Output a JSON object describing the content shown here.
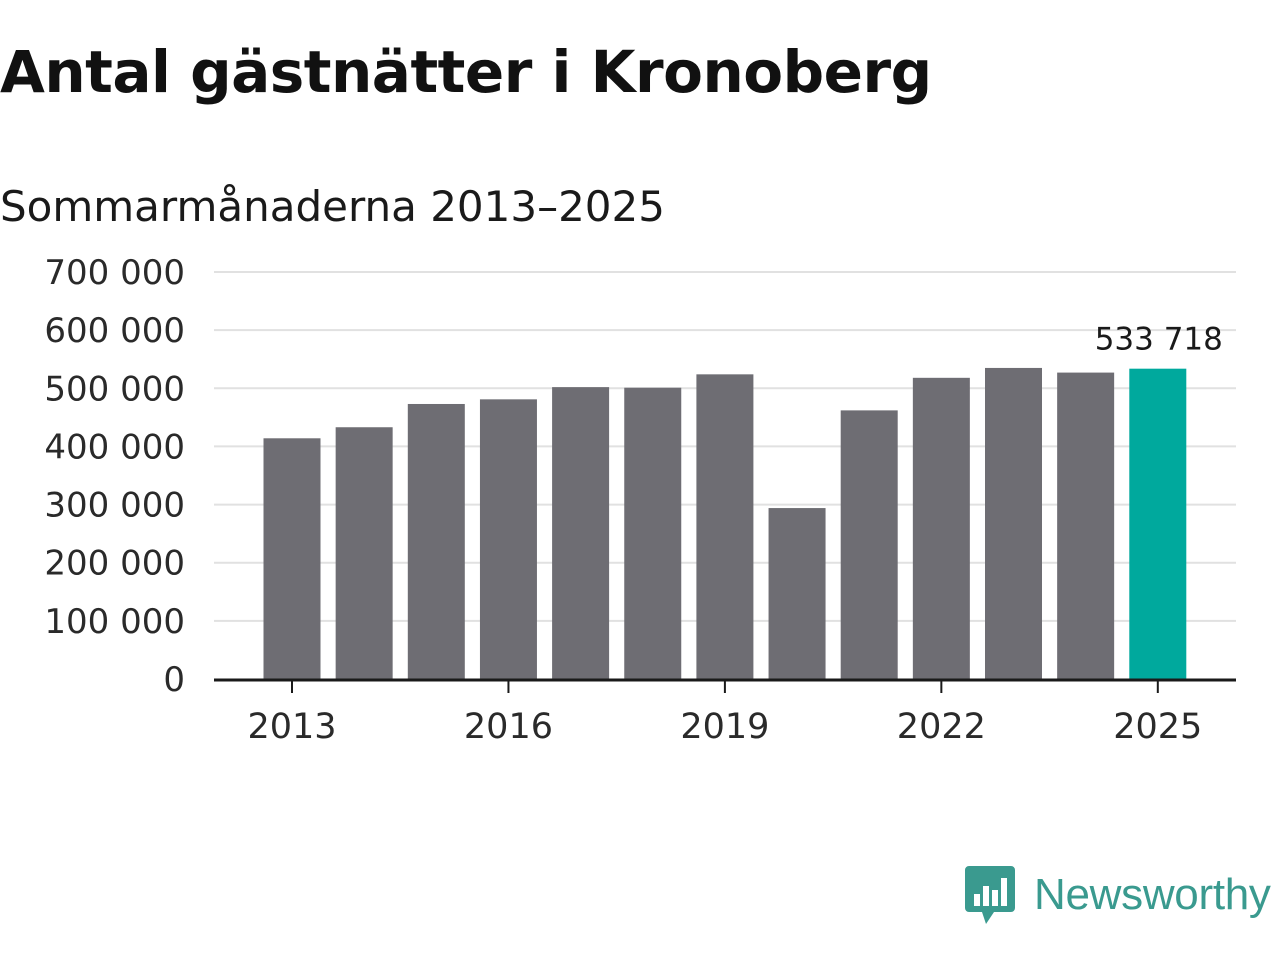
{
  "title": "Antal gästnätter i Kronoberg",
  "subtitle": "Sommarmånaderna 2013–2025",
  "brand": {
    "name": "Newsworthy",
    "color": "#3a9a8f",
    "icon": "newsworthy-bar-chart-icon"
  },
  "colors": {
    "bar": "#6e6d73",
    "highlight": "#00a99d",
    "grid": "#e1e1e1",
    "axis": "#1a1a1a"
  },
  "chart_data": {
    "type": "bar",
    "categories": [
      "2013",
      "2014",
      "2015",
      "2016",
      "2017",
      "2018",
      "2019",
      "2020",
      "2021",
      "2022",
      "2023",
      "2024",
      "2025"
    ],
    "values": [
      414000,
      433000,
      473000,
      481000,
      502000,
      501000,
      524000,
      294000,
      462000,
      518000,
      535000,
      527000,
      533718
    ],
    "highlight_index": 12,
    "highlight_label": "533 718",
    "x_tick_labels": [
      "2013",
      "2016",
      "2019",
      "2022",
      "2025"
    ],
    "y_tick_labels": [
      "0",
      "100 000",
      "200 000",
      "300 000",
      "400 000",
      "500 000",
      "600 000",
      "700 000"
    ],
    "ylim": [
      0,
      700000
    ],
    "grid": true,
    "legend": "none"
  }
}
